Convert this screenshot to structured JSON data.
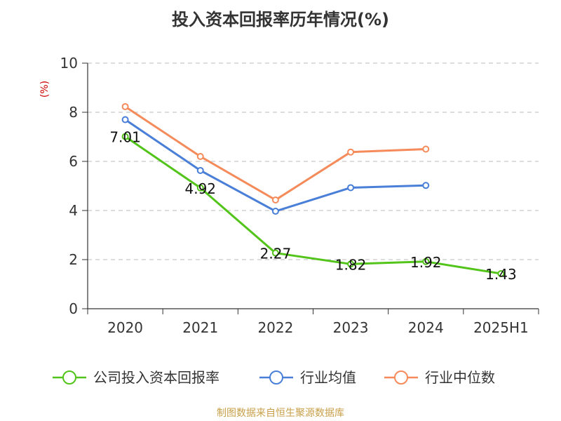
{
  "chart_data": {
    "type": "line",
    "title": "投入资本回报率历年情况(%)",
    "ylabel": "(%)",
    "xlabel": "",
    "categories": [
      "2020",
      "2021",
      "2022",
      "2023",
      "2024",
      "2025H1"
    ],
    "ylim": [
      0,
      10
    ],
    "yticks": [
      0,
      2,
      4,
      6,
      8,
      10
    ],
    "grid": true,
    "legend_position": "bottom",
    "series": [
      {
        "name": "公司投入资本回报率",
        "color": "#52c41a",
        "values": [
          7.01,
          4.92,
          2.27,
          1.82,
          1.92,
          1.43
        ],
        "labels": [
          "7.01",
          "4.92",
          "2.27",
          "1.82",
          "1.92",
          "1.43"
        ]
      },
      {
        "name": "行业均值",
        "color": "#4a7fd8",
        "values": [
          7.7,
          5.63,
          3.97,
          4.93,
          5.02,
          null
        ]
      },
      {
        "name": "行业中位数",
        "color": "#f58b5a",
        "values": [
          8.23,
          6.2,
          4.43,
          6.38,
          6.5,
          null
        ]
      }
    ]
  },
  "source_text": "制图数据来自恒生聚源数据库"
}
